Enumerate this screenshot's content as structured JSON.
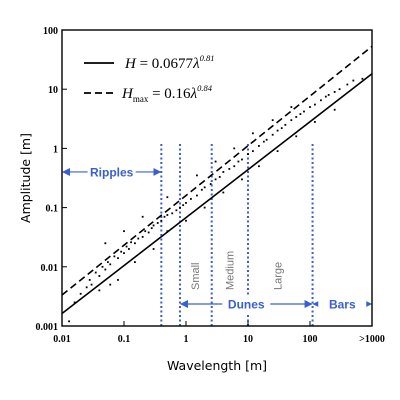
{
  "chart_data": {
    "type": "scatter",
    "title": "",
    "xlabel": "Wavelength [m]",
    "ylabel": "Amplitude [m]",
    "x_scale": "log",
    "y_scale": "log",
    "xlim": [
      0.01,
      1000
    ],
    "ylim": [
      0.001,
      100
    ],
    "x_ticks": [
      {
        "value": 0.01,
        "label": "0.01"
      },
      {
        "value": 0.1,
        "label": "0.1"
      },
      {
        "value": 1,
        "label": "1"
      },
      {
        "value": 10,
        "label": "10"
      },
      {
        "value": 100,
        "label": "100"
      },
      {
        "value": 1000,
        "label": ">1000"
      }
    ],
    "y_ticks": [
      {
        "value": 0.001,
        "label": "0.001"
      },
      {
        "value": 0.01,
        "label": "0.01"
      },
      {
        "value": 0.1,
        "label": "0.1"
      },
      {
        "value": 1,
        "label": "1"
      },
      {
        "value": 10,
        "label": "10"
      },
      {
        "value": 100,
        "label": "100"
      }
    ],
    "legend_position": "top-left",
    "series": [
      {
        "kind": "scatter",
        "values": [
          [
            0.013,
            0.0012
          ],
          [
            0.016,
            0.0025
          ],
          [
            0.02,
            0.0035
          ],
          [
            0.025,
            0.0045
          ],
          [
            0.028,
            0.006
          ],
          [
            0.03,
            0.005
          ],
          [
            0.035,
            0.008
          ],
          [
            0.04,
            0.007
          ],
          [
            0.045,
            0.01
          ],
          [
            0.05,
            0.009
          ],
          [
            0.055,
            0.012
          ],
          [
            0.06,
            0.011
          ],
          [
            0.07,
            0.015
          ],
          [
            0.08,
            0.014
          ],
          [
            0.09,
            0.018
          ],
          [
            0.1,
            0.017
          ],
          [
            0.11,
            0.022
          ],
          [
            0.12,
            0.02
          ],
          [
            0.13,
            0.026
          ],
          [
            0.15,
            0.025
          ],
          [
            0.17,
            0.03
          ],
          [
            0.2,
            0.032
          ],
          [
            0.22,
            0.04
          ],
          [
            0.25,
            0.038
          ],
          [
            0.28,
            0.045
          ],
          [
            0.3,
            0.05
          ],
          [
            0.35,
            0.055
          ],
          [
            0.4,
            0.06
          ],
          [
            0.45,
            0.07
          ],
          [
            0.5,
            0.075
          ],
          [
            0.6,
            0.08
          ],
          [
            0.7,
            0.09
          ],
          [
            0.8,
            0.1
          ],
          [
            0.9,
            0.11
          ],
          [
            1,
            0.12
          ],
          [
            1.2,
            0.14
          ],
          [
            1.5,
            0.16
          ],
          [
            1.8,
            0.2
          ],
          [
            2,
            0.22
          ],
          [
            2.5,
            0.25
          ],
          [
            3,
            0.3
          ],
          [
            3.5,
            0.33
          ],
          [
            4,
            0.4
          ],
          [
            5,
            0.45
          ],
          [
            6,
            0.5
          ],
          [
            7,
            0.6
          ],
          [
            8,
            0.65
          ],
          [
            10,
            0.8
          ],
          [
            12,
            0.9
          ],
          [
            15,
            1.1
          ],
          [
            18,
            1.3
          ],
          [
            20,
            1.4
          ],
          [
            25,
            1.7
          ],
          [
            30,
            2
          ],
          [
            35,
            2.2
          ],
          [
            40,
            2.5
          ],
          [
            50,
            3
          ],
          [
            60,
            3.4
          ],
          [
            70,
            3.8
          ],
          [
            80,
            4.2
          ],
          [
            100,
            5
          ],
          [
            120,
            5.5
          ],
          [
            150,
            6.5
          ],
          [
            180,
            7.5
          ],
          [
            200,
            8
          ],
          [
            250,
            9
          ],
          [
            300,
            10
          ],
          [
            400,
            12
          ],
          [
            500,
            14
          ],
          [
            700,
            15
          ],
          [
            0.04,
            0.004
          ],
          [
            0.06,
            0.005
          ],
          [
            0.08,
            0.006
          ],
          [
            0.15,
            0.012
          ],
          [
            0.3,
            0.02
          ],
          [
            0.5,
            0.04
          ],
          [
            1,
            0.06
          ],
          [
            2,
            0.1
          ],
          [
            4,
            0.18
          ],
          [
            8,
            0.3
          ],
          [
            15,
            0.5
          ],
          [
            30,
            0.9
          ],
          [
            60,
            1.6
          ],
          [
            120,
            2.8
          ],
          [
            250,
            4.5
          ],
          [
            0.05,
            0.025
          ],
          [
            0.1,
            0.04
          ],
          [
            0.2,
            0.07
          ],
          [
            0.5,
            0.15
          ],
          [
            1.5,
            0.35
          ],
          [
            3,
            0.6
          ],
          [
            6,
            1.0
          ],
          [
            12,
            1.8
          ],
          [
            25,
            3.0
          ],
          [
            50,
            5.0
          ]
        ]
      },
      {
        "kind": "line",
        "style": "solid",
        "equation": {
          "lhs": "H",
          "coef": "0.0677",
          "var": "λ",
          "exp": "0.81"
        },
        "a": 0.0677,
        "b": 0.81
      },
      {
        "kind": "line",
        "style": "dashed",
        "equation": {
          "lhs": "H",
          "sub": "max",
          "coef": "0.16",
          "var": "λ",
          "exp": "0.84"
        },
        "a": 0.16,
        "b": 0.84
      }
    ],
    "boundaries": [
      0.4,
      0.8,
      2.6,
      10,
      110
    ],
    "regions": [
      {
        "label": "Ripples",
        "from": 0.01,
        "to": 0.4,
        "level": 0.4
      },
      {
        "label": "Dunes",
        "from": 0.8,
        "to": 110,
        "level": 0.00235
      },
      {
        "label": "Bars",
        "from": 110,
        "to": 1000,
        "level": 0.00235
      }
    ],
    "dune_classes": [
      {
        "label": "Small",
        "x": 1.4
      },
      {
        "label": "Medium",
        "x": 5.0
      },
      {
        "label": "Large",
        "x": 30
      }
    ],
    "colors": {
      "boundary": "#3a5fd0",
      "points": "#000000",
      "fit": "#000000"
    }
  }
}
